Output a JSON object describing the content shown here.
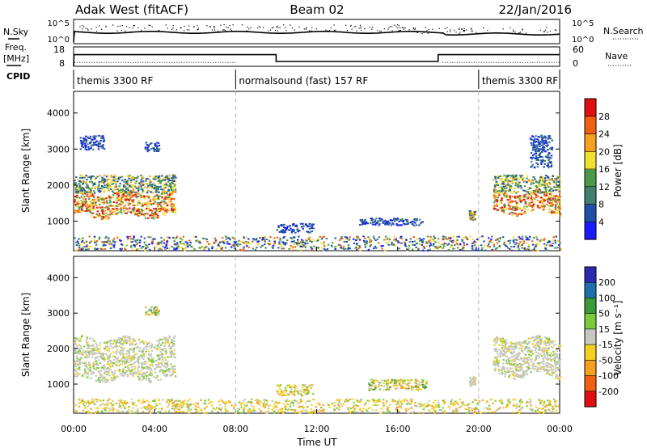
{
  "header": {
    "station": "Adak West (fitACF)",
    "beam": "Beam 02",
    "date": "22/Jan/2016"
  },
  "time_axis": {
    "label": "Time UT",
    "ticks": [
      "00:00",
      "04:00",
      "08:00",
      "12:00",
      "16:00",
      "20:00",
      "00:00"
    ],
    "tick_hours": [
      0,
      4,
      8,
      12,
      16,
      20,
      24
    ],
    "range_hours": [
      0,
      24
    ]
  },
  "noise_panel": {
    "left_label": "N.Sky",
    "right_label": "N.Search",
    "left_ticks": [
      "10^5",
      "10^0"
    ],
    "right_ticks": [
      "10^5",
      "10^0"
    ]
  },
  "freq_panel": {
    "left_label_1": "Freq.",
    "left_label_2": "[MHz]",
    "right_label": "Nave",
    "left_ticks": [
      "18",
      "8"
    ],
    "right_ticks": [
      "60",
      "0"
    ],
    "freq_range": [
      8,
      18
    ],
    "nave_range": [
      0,
      60
    ]
  },
  "cpid_panel": {
    "label": "CPID",
    "modes": [
      {
        "name": "themis 3300 RF",
        "start": 0,
        "end": 8
      },
      {
        "name": "normalsound (fast) 157 RF",
        "start": 8,
        "end": 20
      },
      {
        "name": "themis 3300 RF",
        "start": 20,
        "end": 24
      }
    ]
  },
  "range_axis": {
    "label": "Slant Range [km]",
    "ticks": [
      "1000",
      "2000",
      "3000",
      "4000"
    ],
    "tick_values": [
      1000,
      2000,
      3000,
      4000
    ],
    "range": [
      180,
      4600
    ]
  },
  "power_colorbar": {
    "label": "Power [dB]",
    "ticks": [
      "4",
      "8",
      "12",
      "16",
      "20",
      "24",
      "28"
    ],
    "colors": [
      "#1a1aff",
      "#1f4fa8",
      "#3f8070",
      "#4a9a4a",
      "#f0e030",
      "#f5a020",
      "#f06010",
      "#e01010"
    ]
  },
  "velocity_colorbar": {
    "label": "Velocity [m s⁻¹]",
    "ticks": [
      "200",
      "100",
      "50",
      "15",
      "-15",
      "-50",
      "-100",
      "-200"
    ],
    "colors": [
      "#2a2ab0",
      "#1f6fa8",
      "#3a9a3a",
      "#7acb3a",
      "#c8c8c0",
      "#f5d020",
      "#f5a020",
      "#f06010",
      "#e01010"
    ]
  },
  "chart_data": {
    "type": "heatmap",
    "x_unit": "hours UT",
    "y_unit": "km",
    "power_features": [
      {
        "t0": 0.0,
        "t1": 5.0,
        "r0": 1150,
        "r1": 1800,
        "level": "high"
      },
      {
        "t0": 0.0,
        "t1": 5.0,
        "r0": 1800,
        "r1": 2300,
        "level": "mid"
      },
      {
        "t0": 0.3,
        "t1": 1.5,
        "r0": 3000,
        "r1": 3400,
        "level": "low"
      },
      {
        "t0": 3.5,
        "t1": 4.2,
        "r0": 2950,
        "r1": 3200,
        "level": "low"
      },
      {
        "t0": 10.0,
        "t1": 11.8,
        "r0": 700,
        "r1": 950,
        "level": "low"
      },
      {
        "t0": 14.0,
        "t1": 17.2,
        "r0": 900,
        "r1": 1100,
        "level": "low"
      },
      {
        "t0": 19.5,
        "t1": 19.8,
        "r0": 1050,
        "r1": 1300,
        "level": "mid"
      },
      {
        "t0": 20.7,
        "t1": 24.0,
        "r0": 1250,
        "r1": 1800,
        "level": "high"
      },
      {
        "t0": 20.7,
        "t1": 24.0,
        "r0": 1800,
        "r1": 2300,
        "level": "mid"
      },
      {
        "t0": 22.5,
        "t1": 23.6,
        "r0": 2500,
        "r1": 3400,
        "level": "low"
      },
      {
        "t0": 0.0,
        "t1": 24.0,
        "r0": 200,
        "r1": 600,
        "level": "ground"
      }
    ],
    "velocity_features": [
      {
        "t0": 0.0,
        "t1": 5.0,
        "r0": 1150,
        "r1": 2300,
        "class": "near-zero"
      },
      {
        "t0": 3.5,
        "t1": 4.2,
        "r0": 2950,
        "r1": 3200,
        "class": "mixed"
      },
      {
        "t0": 10.0,
        "t1": 11.8,
        "r0": 700,
        "r1": 1000,
        "class": "negative"
      },
      {
        "t0": 14.5,
        "t1": 17.4,
        "r0": 850,
        "r1": 1150,
        "class": "mixed"
      },
      {
        "t0": 19.5,
        "t1": 19.8,
        "r0": 1050,
        "r1": 1300,
        "class": "near-zero"
      },
      {
        "t0": 20.7,
        "t1": 24.0,
        "r0": 1250,
        "r1": 2300,
        "class": "near-zero"
      },
      {
        "t0": 0.0,
        "t1": 24.0,
        "r0": 200,
        "r1": 600,
        "class": "negative"
      }
    ]
  }
}
